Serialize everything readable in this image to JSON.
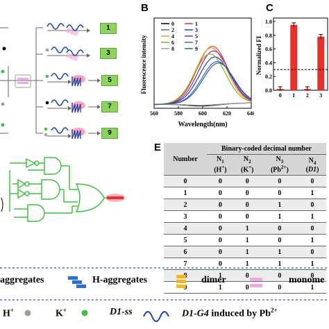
{
  "panels": {
    "b": "B",
    "c": "C",
    "e": "E"
  },
  "scheme": {
    "tags": [
      "1",
      "3",
      "5",
      "7",
      "9"
    ]
  },
  "chart_b": {
    "type": "line",
    "ylabel": "Fluorescence intensity",
    "xlabel": "Wavelength(nm)",
    "xlim": [
      560,
      640
    ],
    "xticks": [
      "560",
      "580",
      "600",
      "620",
      "640"
    ],
    "legend": [
      {
        "name": "0",
        "color": "#000000"
      },
      {
        "name": "1",
        "color": "#e8343a"
      },
      {
        "name": "2",
        "color": "#2e8b3a"
      },
      {
        "name": "3",
        "color": "#1f3fbf"
      },
      {
        "name": "4",
        "color": "#e0a020"
      },
      {
        "name": "5",
        "color": "#a020a0"
      },
      {
        "name": "6",
        "color": "#80b020"
      },
      {
        "name": "7",
        "color": "#3a60c0"
      },
      {
        "name": "8",
        "color": "#a0a0a0"
      },
      {
        "name": "9",
        "color": "#2060a0"
      }
    ]
  },
  "chart_c": {
    "type": "bar",
    "ylabel": "Normalized FI",
    "yticks": [
      "0.0",
      "0.2",
      "0.4",
      "0.6",
      "0.8",
      "1.0"
    ],
    "xticks": [
      "0",
      "1",
      "2",
      "3"
    ],
    "values": [
      0.02,
      0.95,
      0.02,
      0.78
    ],
    "threshold": 0.3,
    "bar_color": "#e8302a"
  },
  "table": {
    "group_header": "Binary-coded decimal number",
    "number_header": "Number",
    "cols": [
      {
        "main": "N",
        "sub": "1",
        "name": "(H",
        "sup": "+",
        "close": ")",
        "italic": false
      },
      {
        "main": "N",
        "sub": "2",
        "name": "(K",
        "sup": "+",
        "close": ")",
        "italic": false
      },
      {
        "main": "N",
        "sub": "3",
        "name": "(Pb",
        "sup": "2+",
        "close": ")",
        "italic": false
      },
      {
        "main": "N",
        "sub": "4",
        "name": "(",
        "sup": "",
        "close": ")",
        "italic_name": "D1"
      }
    ],
    "rows": [
      [
        "0",
        "0",
        "0",
        "0",
        "0"
      ],
      [
        "1",
        "0",
        "0",
        "0",
        "1"
      ],
      [
        "2",
        "0",
        "0",
        "1",
        "0"
      ],
      [
        "3",
        "0",
        "0",
        "1",
        "1"
      ],
      [
        "4",
        "0",
        "1",
        "0",
        "0"
      ],
      [
        "5",
        "0",
        "1",
        "0",
        "1"
      ],
      [
        "6",
        "0",
        "1",
        "1",
        "0"
      ],
      [
        "7",
        "0",
        "1",
        "1",
        "1"
      ],
      [
        "8",
        "1",
        "0",
        "0",
        "0"
      ],
      [
        "9",
        "1",
        "0",
        "0",
        "1"
      ]
    ]
  },
  "legend_row1": {
    "aggregates": "aggregates",
    "h_aggregates": "H-aggregates",
    "dimer": "dimer",
    "monomer": "monome",
    "colors": {
      "aggregate": "#2a6fd6",
      "h_aggregate": "#f0b820",
      "dimer": "#f0a8e0"
    }
  },
  "legend_row2": {
    "h": "H",
    "h_sup": "+",
    "k": "K",
    "k_sup": "+",
    "d1ss": "D1-ss",
    "d1g4": "D1-G4",
    "induced": " induced by Pb",
    "pb_sup": "2+",
    "colors": {
      "h_dot": "#a0a0a0",
      "k_dot": "#40c040",
      "d1ss": "#1a3fb0"
    }
  }
}
